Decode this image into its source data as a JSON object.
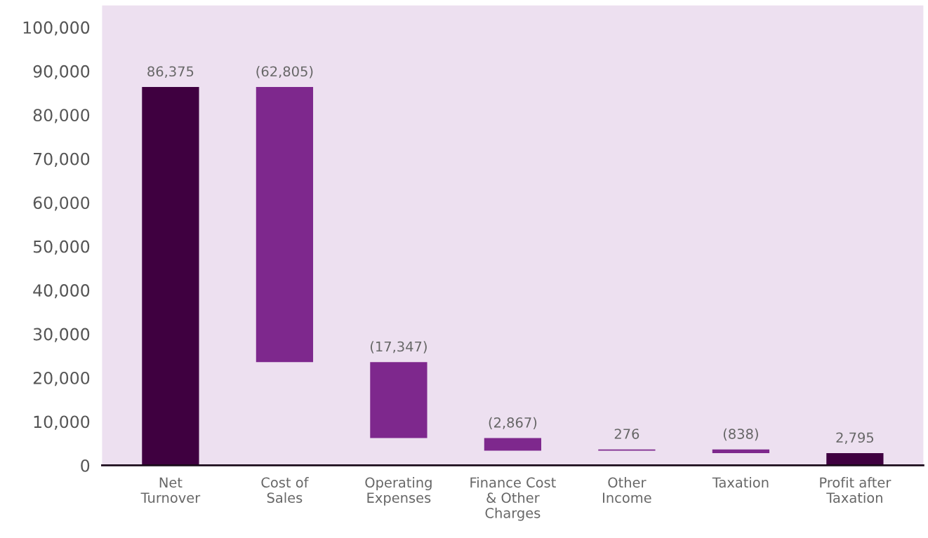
{
  "chart_data": {
    "type": "bar",
    "categories": [
      "Net\nTurnover",
      "Cost of\nSales",
      "Operating\nExpenses",
      "Finance Cost\n& Other\nCharges",
      "Other\nIncome",
      "Taxation",
      "Profit after\nTaxation"
    ],
    "values": [
      86375,
      62805,
      17347,
      2867,
      276,
      838,
      2795
    ],
    "base": [
      0,
      23570,
      6223,
      3356,
      3356,
      2794,
      0
    ],
    "colors": [
      "#3f0040",
      "#7e288d",
      "#7e288d",
      "#7e288d",
      "#7e288d",
      "#7e288d",
      "#3f0040"
    ],
    "value_labels": [
      "86,375",
      "(62,805)",
      "(17,347)",
      "(2,867)",
      "276",
      "(838)",
      "2,795"
    ],
    "ylim": [
      0,
      105000
    ],
    "yticks": [
      0,
      {
        "value": 10000,
        "label": "10,000"
      },
      {
        "value": 20000,
        "label": "20,000"
      },
      {
        "value": 30000,
        "label": "30,000"
      },
      {
        "value": 40000,
        "label": "40,000"
      },
      {
        "value": 50000,
        "label": "50,000"
      },
      {
        "value": 60000,
        "label": "60,000"
      },
      {
        "value": 70000,
        "label": "70,000"
      },
      {
        "value": 80000,
        "label": "80,000"
      },
      {
        "value": 90000,
        "label": "90,000"
      },
      {
        "value": 100000,
        "label": "100,000"
      }
    ],
    "grid": false,
    "legend": false
  }
}
